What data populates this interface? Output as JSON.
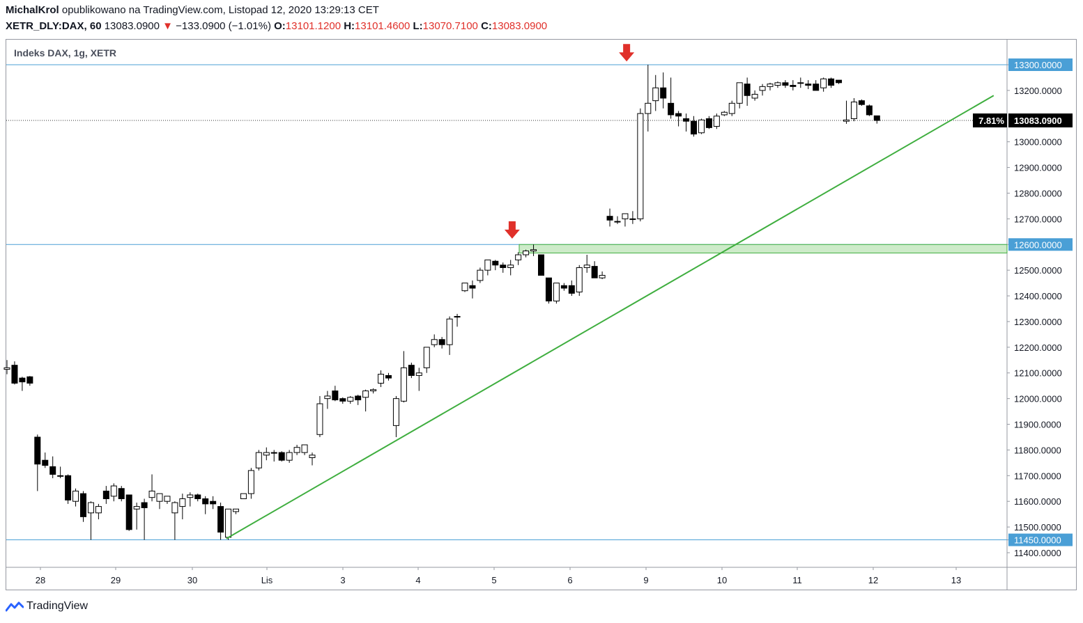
{
  "header": {
    "author": "MichalKrol",
    "published": "opublikowano na TradingView.com, Listopad 12, 2020 13:29:13 CET",
    "symbol": "XETR_DLY:DAX, 60",
    "last": "13083.0900",
    "change_arrow": "▼",
    "change": "−133.0900 (−1.01%)",
    "o_label": "O:",
    "o_value": "13101.1200",
    "h_label": "H:",
    "h_value": "13101.4600",
    "l_label": "L:",
    "l_value": "13070.7100",
    "c_label": "C:",
    "c_value": "13083.0900"
  },
  "legend": "Indeks DAX, 1g, XETR",
  "brand": "TradingView",
  "colors": {
    "up_fill": "#ffffff",
    "down_fill": "#000000",
    "candle_border": "#000000",
    "hline": "#4a9fd6",
    "trendline": "#3fae3f",
    "zone_fill": "#cdebc9",
    "zone_border": "#3fae3f",
    "arrow": "#e0302a",
    "text_red": "#e0302a"
  },
  "chart_data": {
    "type": "candlestick",
    "y_ticks": [
      "13300.0000",
      "13200.0000",
      "13000.0000",
      "12900.0000",
      "12800.0000",
      "12700.0000",
      "12600.0000",
      "12500.0000",
      "12400.0000",
      "12300.0000",
      "12200.0000",
      "12100.0000",
      "12000.0000",
      "11900.0000",
      "11800.0000",
      "11700.0000",
      "11600.0000",
      "11500.0000",
      "11450.0000",
      "11400.0000"
    ],
    "x_ticks": [
      "28",
      "29",
      "30",
      "Lis",
      "3",
      "4",
      "5",
      "6",
      "9",
      "10",
      "11",
      "12",
      "13"
    ],
    "ylim": [
      11360,
      13355
    ],
    "horizontal_levels": [
      {
        "value": 13300,
        "label": "13300.0000"
      },
      {
        "value": 12600,
        "label": "12600.0000"
      },
      {
        "value": 11450,
        "label": "11450.0000"
      }
    ],
    "current_price": {
      "value": 13083.09,
      "label": "13083.0900",
      "pct_label": "7.81%"
    },
    "resistance_zone": {
      "from": 12567,
      "to": 12600
    },
    "trendline": {
      "start": {
        "x": 28.75,
        "y": 11455
      },
      "end": {
        "x": 129.3,
        "y": 13180
      }
    },
    "arrows": [
      {
        "x": 66.2,
        "y": 12620
      },
      {
        "x": 81.2,
        "y": 13310
      }
    ],
    "candles": [
      [
        0,
        12114,
        12150,
        12095,
        12120
      ],
      [
        1,
        12130,
        12145,
        12055,
        12060
      ],
      [
        2,
        12080,
        12085,
        12030,
        12065
      ],
      [
        3,
        12085,
        12088,
        12050,
        12060
      ],
      [
        4,
        11850,
        11860,
        11640,
        11745
      ],
      [
        5,
        11760,
        11790,
        11730,
        11740
      ],
      [
        6,
        11735,
        11775,
        11690,
        11705
      ],
      [
        7,
        11700,
        11735,
        11690,
        11700
      ],
      [
        8,
        11700,
        11705,
        11590,
        11605
      ],
      [
        9,
        11600,
        11650,
        11580,
        11640
      ],
      [
        10,
        11630,
        11640,
        11520,
        11540
      ],
      [
        11,
        11555,
        11600,
        11450,
        11595
      ],
      [
        12,
        11555,
        11590,
        11530,
        11580
      ],
      [
        13,
        11640,
        11660,
        11590,
        11610
      ],
      [
        14,
        11620,
        11670,
        11600,
        11660
      ],
      [
        15,
        11650,
        11660,
        11600,
        11610
      ],
      [
        16,
        11625,
        11625,
        11485,
        11490
      ],
      [
        17,
        11570,
        11595,
        11490,
        11580
      ],
      [
        18,
        11595,
        11610,
        11450,
        11575
      ],
      [
        19,
        11615,
        11705,
        11600,
        11640
      ],
      [
        20,
        11600,
        11620,
        11570,
        11630
      ],
      [
        21,
        11600,
        11615,
        11590,
        11620
      ],
      [
        22,
        11555,
        11600,
        11450,
        11595
      ],
      [
        23,
        11580,
        11630,
        11530,
        11610
      ],
      [
        24,
        11615,
        11635,
        11580,
        11625
      ],
      [
        25,
        11625,
        11630,
        11600,
        11610
      ],
      [
        26,
        11610,
        11620,
        11550,
        11590
      ],
      [
        27,
        11600,
        11620,
        11570,
        11590
      ],
      [
        28,
        11580,
        11595,
        11450,
        11480
      ],
      [
        29,
        11460,
        11570,
        11450,
        11570
      ],
      [
        30,
        11560,
        11570,
        11550,
        11570
      ],
      [
        31,
        11610,
        11630,
        11610,
        11630
      ],
      [
        32,
        11630,
        11730,
        11610,
        11720
      ],
      [
        33,
        11730,
        11800,
        11720,
        11790
      ],
      [
        34,
        11780,
        11810,
        11760,
        11790
      ],
      [
        35,
        11790,
        11800,
        11755,
        11790
      ],
      [
        36,
        11790,
        11795,
        11755,
        11760
      ],
      [
        37,
        11760,
        11800,
        11750,
        11790
      ],
      [
        38,
        11790,
        11820,
        11780,
        11810
      ],
      [
        39,
        11790,
        11820,
        11780,
        11820
      ],
      [
        40,
        11770,
        11790,
        11740,
        11780
      ],
      [
        41,
        11860,
        12010,
        11850,
        11980
      ],
      [
        42,
        12000,
        12030,
        11960,
        12010
      ],
      [
        43,
        12030,
        12050,
        11990,
        11995
      ],
      [
        44,
        12000,
        12005,
        11980,
        11990
      ],
      [
        45,
        11990,
        12010,
        11980,
        12005
      ],
      [
        46,
        12010,
        12015,
        11975,
        11995
      ],
      [
        47,
        12005,
        12035,
        11950,
        12030
      ],
      [
        48,
        12030,
        12040,
        12020,
        12035
      ],
      [
        49,
        12060,
        12110,
        12045,
        12095
      ],
      [
        50,
        12090,
        12100,
        12070,
        12080
      ],
      [
        51,
        11895,
        12010,
        11850,
        12000
      ],
      [
        52,
        11990,
        12185,
        11985,
        12120
      ],
      [
        53,
        12130,
        12140,
        12080,
        12090
      ],
      [
        54,
        12090,
        12120,
        12030,
        12100
      ],
      [
        55,
        12120,
        12200,
        12100,
        12200
      ],
      [
        56,
        12210,
        12250,
        12200,
        12230
      ],
      [
        57,
        12230,
        12240,
        12195,
        12210
      ],
      [
        58,
        12210,
        12320,
        12170,
        12310
      ],
      [
        59,
        12320,
        12330,
        12280,
        12320
      ],
      [
        60,
        12420,
        12450,
        12415,
        12450
      ],
      [
        61,
        12440,
        12460,
        12390,
        12430
      ],
      [
        62,
        12460,
        12510,
        12450,
        12500
      ],
      [
        63,
        12500,
        12540,
        12480,
        12540
      ],
      [
        64,
        12535,
        12540,
        12500,
        12520
      ],
      [
        65,
        12520,
        12530,
        12490,
        12510
      ],
      [
        66,
        12510,
        12540,
        12480,
        12520
      ],
      [
        67,
        12540,
        12570,
        12520,
        12560
      ],
      [
        68,
        12560,
        12580,
        12550,
        12575
      ],
      [
        69,
        12575,
        12600,
        12555,
        12580
      ],
      [
        70,
        12560,
        12560,
        12480,
        12480
      ],
      [
        71,
        12470,
        12470,
        12370,
        12380
      ],
      [
        72,
        12380,
        12440,
        12370,
        12450
      ],
      [
        73,
        12440,
        12450,
        12420,
        12430
      ],
      [
        74,
        12440,
        12460,
        12400,
        12410
      ],
      [
        75,
        12415,
        12520,
        12400,
        12510
      ],
      [
        76,
        12510,
        12560,
        12490,
        12520
      ],
      [
        77,
        12515,
        12535,
        12470,
        12470
      ],
      [
        78,
        12470,
        12495,
        12465,
        12480
      ],
      [
        79,
        12710,
        12740,
        12670,
        12695
      ],
      [
        80,
        12690,
        12710,
        12680,
        12690
      ],
      [
        81,
        12700,
        12720,
        12670,
        12720
      ],
      [
        82,
        12700,
        12730,
        12680,
        12700
      ],
      [
        83,
        12700,
        13130,
        12690,
        13110
      ],
      [
        84,
        13110,
        13300,
        13040,
        13150
      ],
      [
        85,
        13160,
        13260,
        13120,
        13210
      ],
      [
        86,
        13210,
        13270,
        13130,
        13170
      ],
      [
        87,
        13150,
        13250,
        13090,
        13105
      ],
      [
        88,
        13110,
        13120,
        13060,
        13100
      ],
      [
        89,
        13090,
        13110,
        13040,
        13080
      ],
      [
        90,
        13080,
        13100,
        13020,
        13030
      ],
      [
        91,
        13035,
        13090,
        13030,
        13085
      ],
      [
        92,
        13090,
        13100,
        13050,
        13055
      ],
      [
        93,
        13060,
        13110,
        13050,
        13100
      ],
      [
        94,
        13105,
        13120,
        13100,
        13115
      ],
      [
        95,
        13110,
        13160,
        13100,
        13150
      ],
      [
        96,
        13150,
        13230,
        13130,
        13230
      ],
      [
        97,
        13225,
        13250,
        13140,
        13180
      ],
      [
        98,
        13170,
        13200,
        13160,
        13185
      ],
      [
        99,
        13200,
        13225,
        13180,
        13215
      ],
      [
        100,
        13215,
        13230,
        13200,
        13225
      ],
      [
        101,
        13220,
        13235,
        13210,
        13230
      ],
      [
        102,
        13230,
        13240,
        13210,
        13220
      ],
      [
        103,
        13220,
        13240,
        13200,
        13215
      ],
      [
        104,
        13230,
        13250,
        13210,
        13230
      ],
      [
        105,
        13225,
        13240,
        13205,
        13220
      ],
      [
        106,
        13225,
        13240,
        13210,
        13200
      ],
      [
        107,
        13210,
        13250,
        13195,
        13245
      ],
      [
        108,
        13245,
        13250,
        13210,
        13220
      ],
      [
        109,
        13240,
        13240,
        13225,
        13230
      ],
      [
        110,
        13080,
        13160,
        13070,
        13085
      ],
      [
        111,
        13090,
        13170,
        13080,
        13155
      ],
      [
        112,
        13160,
        13165,
        13140,
        13145
      ],
      [
        113,
        13140,
        13145,
        13100,
        13105
      ],
      [
        114,
        13101.12,
        13101.46,
        13070.71,
        13083.09
      ]
    ]
  }
}
